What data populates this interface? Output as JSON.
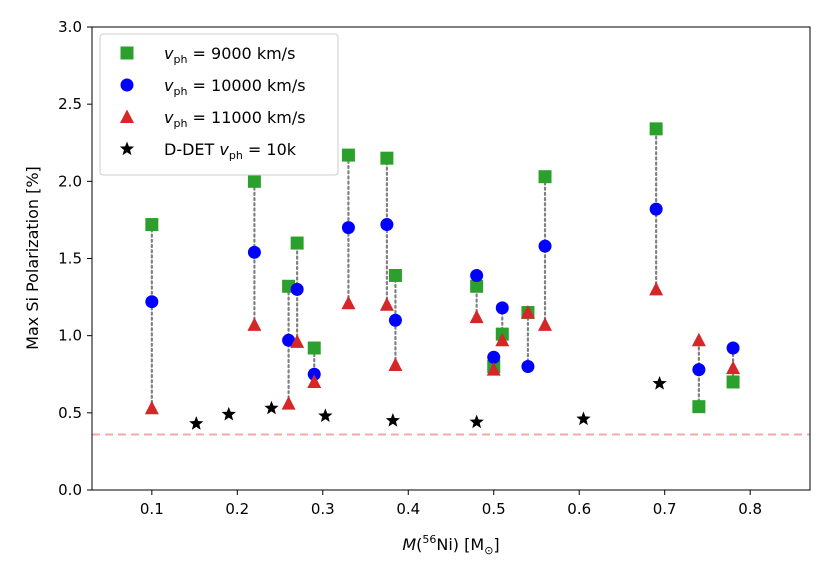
{
  "chart_data": {
    "type": "scatter",
    "xlabel_html": "M(<sup>56</sup>Ni) [M<sub>⊙</sub>]",
    "xlabel_plain": "M(56Ni) [M⊙]",
    "ylabel": "Max Si Polarization [%]",
    "xlim": [
      0.03,
      0.87
    ],
    "ylim": [
      0.0,
      3.0
    ],
    "xticks": [
      "0.1",
      "0.2",
      "0.3",
      "0.4",
      "0.5",
      "0.6",
      "0.7",
      "0.8"
    ],
    "yticks": [
      "0.0",
      "0.5",
      "1.0",
      "1.5",
      "2.0",
      "2.5",
      "3.0"
    ],
    "reference_line": {
      "y": 0.36,
      "color": "#f4a9a9",
      "style": "dashed"
    },
    "connector_color": "#808080",
    "legend": {
      "placement": "top-left",
      "entries": [
        {
          "label": "v_ph = 9000 km/s",
          "marker": "square",
          "color": "#2ca02c"
        },
        {
          "label": "v_ph = 10000 km/s",
          "marker": "circle",
          "color": "#0000ff"
        },
        {
          "label": "v_ph = 11000 km/s",
          "marker": "triangle",
          "color": "#d62728"
        },
        {
          "label": "D-DET v_ph = 10k",
          "marker": "star",
          "color": "#000000"
        }
      ]
    },
    "series": [
      {
        "name": "v_ph = 9000 km/s",
        "marker": "square",
        "color": "#2ca02c",
        "points": [
          [
            0.1,
            1.72
          ],
          [
            0.22,
            2.0
          ],
          [
            0.26,
            1.32
          ],
          [
            0.27,
            1.6
          ],
          [
            0.29,
            0.92
          ],
          [
            0.33,
            2.17
          ],
          [
            0.375,
            2.15
          ],
          [
            0.385,
            1.39
          ],
          [
            0.48,
            1.32
          ],
          [
            0.5,
            0.8
          ],
          [
            0.51,
            1.01
          ],
          [
            0.54,
            1.15
          ],
          [
            0.56,
            2.03
          ],
          [
            0.69,
            2.34
          ],
          [
            0.74,
            0.54
          ],
          [
            0.78,
            0.7
          ]
        ]
      },
      {
        "name": "v_ph = 10000 km/s",
        "marker": "circle",
        "color": "#0000ff",
        "points": [
          [
            0.1,
            1.22
          ],
          [
            0.22,
            1.54
          ],
          [
            0.26,
            0.97
          ],
          [
            0.27,
            1.3
          ],
          [
            0.29,
            0.75
          ],
          [
            0.33,
            1.7
          ],
          [
            0.375,
            1.72
          ],
          [
            0.385,
            1.1
          ],
          [
            0.48,
            1.39
          ],
          [
            0.5,
            0.86
          ],
          [
            0.51,
            1.18
          ],
          [
            0.54,
            0.8
          ],
          [
            0.56,
            1.58
          ],
          [
            0.69,
            1.82
          ],
          [
            0.74,
            0.78
          ],
          [
            0.78,
            0.92
          ]
        ]
      },
      {
        "name": "v_ph = 11000 km/s",
        "marker": "triangle",
        "color": "#d62728",
        "points": [
          [
            0.1,
            0.53
          ],
          [
            0.22,
            1.07
          ],
          [
            0.26,
            0.56
          ],
          [
            0.27,
            0.96
          ],
          [
            0.29,
            0.7
          ],
          [
            0.33,
            1.21
          ],
          [
            0.375,
            1.2
          ],
          [
            0.385,
            0.81
          ],
          [
            0.48,
            1.12
          ],
          [
            0.5,
            0.78
          ],
          [
            0.51,
            0.97
          ],
          [
            0.54,
            1.15
          ],
          [
            0.56,
            1.07
          ],
          [
            0.69,
            1.3
          ],
          [
            0.74,
            0.97
          ],
          [
            0.78,
            0.79
          ]
        ]
      },
      {
        "name": "D-DET v_ph = 10k",
        "marker": "star",
        "color": "#000000",
        "points": [
          [
            0.152,
            0.43
          ],
          [
            0.19,
            0.49
          ],
          [
            0.24,
            0.53
          ],
          [
            0.303,
            0.48
          ],
          [
            0.382,
            0.45
          ],
          [
            0.48,
            0.44
          ],
          [
            0.605,
            0.46
          ],
          [
            0.694,
            0.69
          ]
        ]
      }
    ]
  }
}
